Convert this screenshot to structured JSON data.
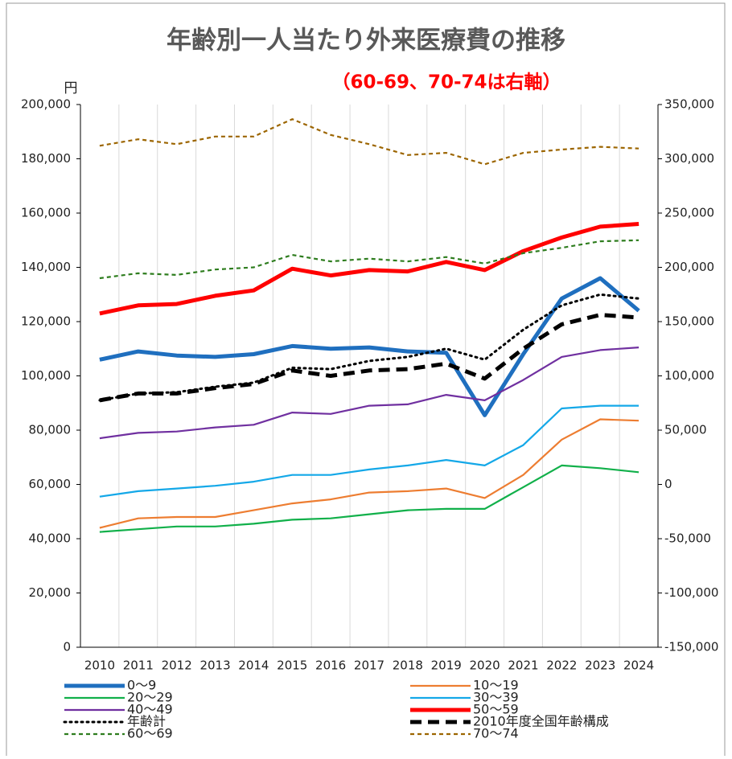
{
  "chart_data": {
    "type": "line",
    "title": "年齢別一人当たり外来医療費の推移",
    "subtitle": "（60-69、70-74は右軸）",
    "y_label": "円",
    "categories": [
      "2010",
      "2011",
      "2012",
      "2013",
      "2014",
      "2015",
      "2016",
      "2017",
      "2018",
      "2019",
      "2020",
      "2021",
      "2022",
      "2023",
      "2024"
    ],
    "ylim": [
      0,
      200000
    ],
    "yticks": [
      0,
      {
        "value": 20000,
        "label": "20,000"
      },
      {
        "value": 40000,
        "label": "40,000"
      },
      {
        "value": 60000,
        "label": "60,000"
      },
      {
        "value": 80000,
        "label": "80,000"
      },
      {
        "value": 100000,
        "label": "100,000"
      },
      {
        "value": 120000,
        "label": "120,000"
      },
      {
        "value": 140000,
        "label": "140,000"
      },
      {
        "value": 160000,
        "label": "160,000"
      },
      {
        "value": 180000,
        "label": "180,000"
      },
      {
        "value": 200000,
        "label": "200,000"
      }
    ],
    "y2lim": [
      -150000,
      350000
    ],
    "y2ticks": [
      {
        "value": -150000,
        "label": "-150,000"
      },
      {
        "value": -100000,
        "label": "-100,000"
      },
      {
        "value": -50000,
        "label": "-50,000"
      },
      0,
      {
        "value": 50000,
        "label": "50,000"
      },
      {
        "value": 100000,
        "label": "100,000"
      },
      {
        "value": 150000,
        "label": "150,000"
      },
      {
        "value": 200000,
        "label": "200,000"
      },
      {
        "value": 250000,
        "label": "250,000"
      },
      {
        "value": 300000,
        "label": "300,000"
      },
      {
        "value": 350000,
        "label": "350,000"
      }
    ],
    "grid": "x",
    "series": [
      {
        "name": "0～9",
        "color": "#1f6fbf",
        "width": 5,
        "style": "solid",
        "values": [
          106000,
          109000,
          107500,
          107000,
          108000,
          111000,
          110000,
          110500,
          109000,
          108500,
          85500,
          108000,
          128500,
          136000,
          124000
        ]
      },
      {
        "name": "10～19",
        "color": "#ed7d31",
        "width": 2.2,
        "style": "solid",
        "values": [
          44000,
          47500,
          48000,
          48000,
          50500,
          53000,
          54500,
          57000,
          57500,
          58500,
          55000,
          63500,
          76500,
          84000,
          83500
        ]
      },
      {
        "name": "20～29",
        "color": "#11b04a",
        "width": 2.2,
        "style": "solid",
        "values": [
          42500,
          43500,
          44500,
          44500,
          45500,
          47000,
          47500,
          49000,
          50500,
          51000,
          51000,
          59000,
          67000,
          66000,
          64500
        ]
      },
      {
        "name": "30～39",
        "color": "#14a8e8",
        "width": 2.2,
        "style": "solid",
        "values": [
          55500,
          57500,
          58500,
          59500,
          61000,
          63500,
          63500,
          65500,
          67000,
          69000,
          67000,
          74500,
          88000,
          89000,
          89000
        ]
      },
      {
        "name": "40～49",
        "color": "#7030a0",
        "width": 2.2,
        "style": "solid",
        "values": [
          77000,
          79000,
          79500,
          81000,
          82000,
          86500,
          86000,
          89000,
          89500,
          93000,
          91000,
          98500,
          107000,
          109500,
          110500
        ]
      },
      {
        "name": "50～59",
        "color": "#ff0000",
        "width": 5,
        "style": "solid",
        "values": [
          123000,
          126000,
          126500,
          129500,
          131500,
          139500,
          137000,
          139000,
          138500,
          142000,
          139000,
          146000,
          151000,
          155000,
          156000
        ]
      },
      {
        "name": "年齢計",
        "color": "#000000",
        "width": 3,
        "style": "dotted",
        "values": [
          91000,
          93500,
          94000,
          96000,
          97500,
          103000,
          102500,
          105500,
          107000,
          110000,
          106000,
          117000,
          126000,
          130000,
          128500
        ]
      },
      {
        "name": "2010年度全国年齢構成",
        "color": "#000000",
        "width": 5,
        "style": "dashed",
        "values": [
          91000,
          93500,
          93500,
          95500,
          97000,
          102000,
          100000,
          102000,
          102500,
          104500,
          99000,
          110000,
          119000,
          122500,
          121500
        ]
      },
      {
        "name": "60～69",
        "color": "#2e7d1e",
        "width": 2.2,
        "style": "shortdash",
        "axis": "y2",
        "values": [
          190000,
          194500,
          193000,
          198000,
          200000,
          211500,
          205500,
          208000,
          205500,
          209500,
          203500,
          213000,
          218000,
          224000,
          225000
        ]
      },
      {
        "name": "70～74",
        "color": "#9c6500",
        "width": 2.2,
        "style": "shortdash",
        "axis": "y2",
        "values": [
          312000,
          318000,
          313500,
          320500,
          320500,
          336500,
          322000,
          313500,
          303500,
          305500,
          295000,
          305500,
          308500,
          311000,
          309500
        ]
      }
    ]
  }
}
